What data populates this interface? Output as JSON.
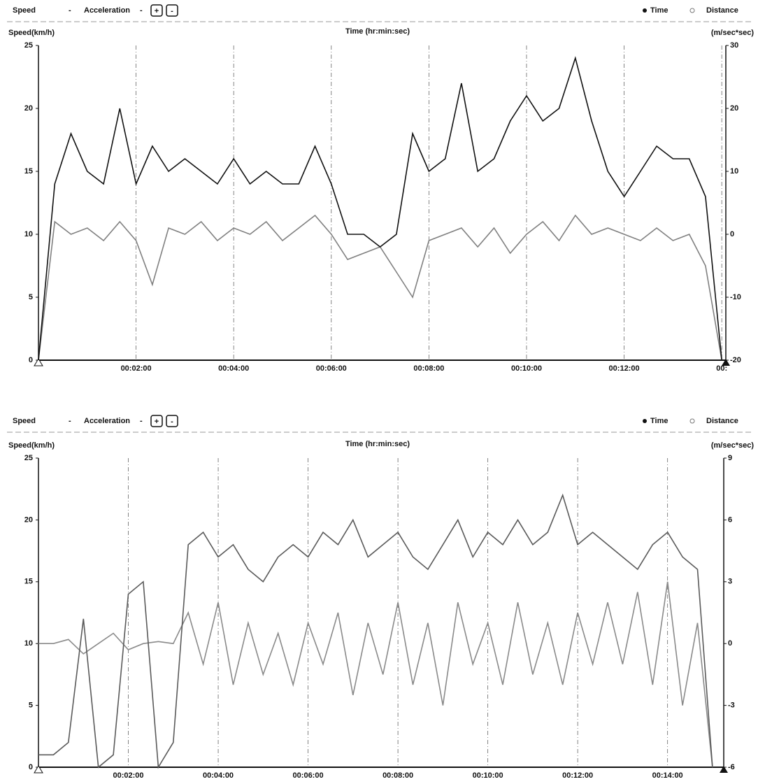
{
  "chart_data": [
    {
      "type": "line",
      "toolbar": {
        "dropdowns": [
          "Speed",
          "Acceleration"
        ],
        "radios": [
          "Time",
          "Distance"
        ]
      },
      "x_label": "Time (hr:min:sec)",
      "y_label": "Speed(km/h)",
      "y2_label": "(m/sec*sec)",
      "xlim": [
        0,
        845
      ],
      "ylim": [
        0,
        25
      ],
      "y2lim": [
        -20,
        30
      ],
      "xticks": [
        {
          "value": 120,
          "label": "00:02:00"
        },
        {
          "value": 240,
          "label": "00:04:00"
        },
        {
          "value": 360,
          "label": "00:06:00"
        },
        {
          "value": 480,
          "label": "00:08:00"
        },
        {
          "value": 600,
          "label": "00:10:00"
        },
        {
          "value": 720,
          "label": "00:12:00"
        },
        {
          "value": 840,
          "label": "00:"
        }
      ],
      "yticks": [
        0,
        5,
        10,
        15,
        20,
        25
      ],
      "y2ticks": [
        -20,
        -10,
        0,
        10,
        20,
        30
      ],
      "grid": true,
      "x": [
        0,
        20,
        40,
        60,
        80,
        100,
        120,
        140,
        160,
        180,
        200,
        220,
        240,
        260,
        280,
        300,
        320,
        340,
        360,
        380,
        400,
        420,
        440,
        460,
        480,
        500,
        520,
        540,
        560,
        580,
        600,
        620,
        640,
        660,
        680,
        700,
        720,
        740,
        760,
        780,
        800,
        820,
        840
      ],
      "series": [
        {
          "name": "Speed",
          "color": "#111111",
          "values": [
            0,
            14,
            18,
            15,
            14,
            20,
            14,
            17,
            15,
            16,
            15,
            14,
            16,
            14,
            15,
            14,
            14,
            17,
            14,
            10,
            10,
            9,
            10,
            18,
            15,
            16,
            22,
            15,
            16,
            19,
            21,
            19,
            20,
            24,
            19,
            15,
            13,
            15,
            17,
            16,
            16,
            13,
            0
          ]
        },
        {
          "name": "Acceleration",
          "color": "#808080",
          "axis": "y2",
          "values": [
            -20,
            2,
            0,
            1,
            -1,
            2,
            -1,
            -8,
            1,
            0,
            2,
            -1,
            1,
            0,
            2,
            -1,
            1,
            3,
            0,
            -4,
            -3,
            -2,
            -6,
            -10,
            -1,
            0,
            1,
            -2,
            1,
            -3,
            0,
            2,
            -1,
            3,
            0,
            1,
            0,
            -1,
            1,
            -1,
            0,
            -5,
            -20
          ]
        }
      ]
    },
    {
      "type": "line",
      "toolbar": {
        "dropdowns": [
          "Speed",
          "Acceleration"
        ],
        "radios": [
          "Time",
          "Distance"
        ]
      },
      "x_label": "Time (hr:min:sec)",
      "y_label": "Speed(km/h)",
      "y2_label": "(m/sec*sec)",
      "xlim": [
        0,
        915
      ],
      "ylim": [
        0,
        25
      ],
      "y2lim": [
        -6,
        9
      ],
      "xticks": [
        {
          "value": 120,
          "label": "00:02:00"
        },
        {
          "value": 240,
          "label": "00:04:00"
        },
        {
          "value": 360,
          "label": "00:06:00"
        },
        {
          "value": 480,
          "label": "00:08:00"
        },
        {
          "value": 600,
          "label": "00:10:00"
        },
        {
          "value": 720,
          "label": "00:12:00"
        },
        {
          "value": 840,
          "label": "00:14:00"
        }
      ],
      "yticks": [
        0,
        5,
        10,
        15,
        20,
        25
      ],
      "y2ticks": [
        -6,
        -3,
        0,
        3,
        6,
        9
      ],
      "grid": true,
      "x": [
        0,
        20,
        40,
        60,
        80,
        100,
        120,
        140,
        160,
        180,
        200,
        220,
        240,
        260,
        280,
        300,
        320,
        340,
        360,
        380,
        400,
        420,
        440,
        460,
        480,
        500,
        520,
        540,
        560,
        580,
        600,
        620,
        640,
        660,
        680,
        700,
        720,
        740,
        760,
        780,
        800,
        820,
        840,
        860,
        880,
        900
      ],
      "series": [
        {
          "name": "Speed",
          "color": "#5a5a5a",
          "values": [
            1,
            1,
            2,
            12,
            0,
            1,
            14,
            15,
            0,
            2,
            18,
            19,
            17,
            18,
            16,
            15,
            17,
            18,
            17,
            19,
            18,
            20,
            17,
            18,
            19,
            17,
            16,
            18,
            20,
            17,
            19,
            18,
            20,
            18,
            19,
            22,
            18,
            19,
            18,
            17,
            16,
            18,
            19,
            17,
            16,
            0
          ]
        },
        {
          "name": "Acceleration",
          "color": "#8a8a8a",
          "axis": "y2",
          "values": [
            0,
            0,
            0.2,
            -0.5,
            0,
            0.5,
            -0.3,
            0,
            0.1,
            0,
            1.5,
            -1,
            2,
            -2,
            1,
            -1.5,
            0.5,
            -2,
            1,
            -1,
            1.5,
            -2.5,
            1,
            -1.5,
            2,
            -2,
            1,
            -3,
            2,
            -1,
            1,
            -2,
            2,
            -1.5,
            1,
            -2,
            1.5,
            -1,
            2,
            -1,
            2.5,
            -2,
            3,
            -3,
            1,
            -6
          ]
        }
      ]
    }
  ]
}
